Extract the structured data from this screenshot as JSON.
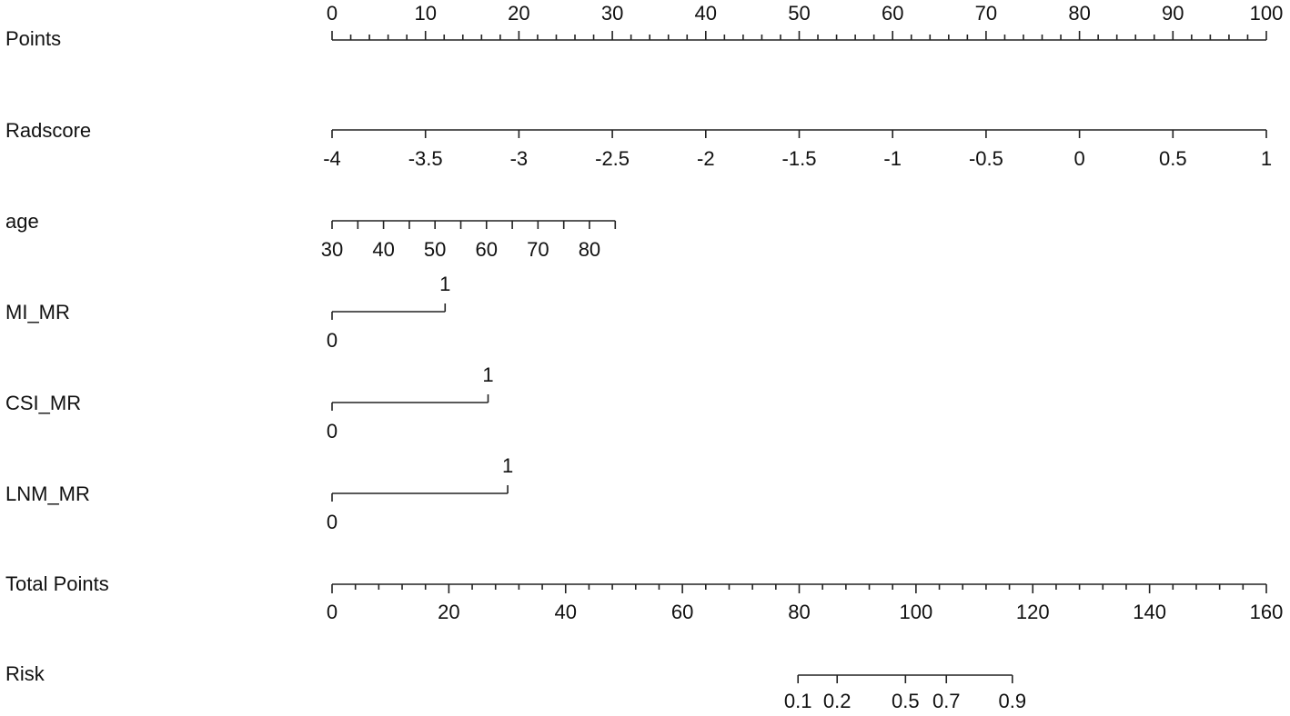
{
  "chart_data": {
    "type": "nomogram",
    "points_axis": {
      "label": "Points",
      "xlim": [
        0,
        100
      ],
      "xticks": [
        0,
        10,
        20,
        30,
        40,
        50,
        60,
        70,
        80,
        90,
        100
      ],
      "minor_xticks": [
        2,
        4,
        6,
        8,
        12,
        14,
        16,
        18,
        22,
        24,
        26,
        28,
        32,
        34,
        36,
        38,
        42,
        44,
        46,
        48,
        52,
        54,
        56,
        58,
        62,
        64,
        66,
        68,
        72,
        74,
        76,
        78,
        82,
        84,
        86,
        88,
        92,
        94,
        96,
        98
      ]
    },
    "variables": [
      {
        "label": "Radscore",
        "ticks": [
          -4,
          -3.5,
          -3,
          -2.5,
          -2,
          -1.5,
          -1,
          -0.5,
          0,
          0.5,
          1
        ],
        "points": [
          0,
          10,
          20,
          30,
          40,
          50,
          60,
          70,
          80,
          90,
          100
        ]
      },
      {
        "label": "age",
        "ticks": [
          30,
          40,
          50,
          60,
          70,
          80
        ],
        "points": [
          0,
          5.51,
          11.02,
          16.53,
          22.04,
          27.55
        ],
        "minor_ticks": [
          35,
          45,
          55,
          65,
          75,
          85
        ],
        "minor_points": [
          2.76,
          8.27,
          13.78,
          19.29,
          24.8,
          30.31
        ]
      },
      {
        "label": "MI_MR",
        "ticks": [
          0,
          1
        ],
        "points": [
          0,
          12.1
        ]
      },
      {
        "label": "CSI_MR",
        "ticks": [
          0,
          1
        ],
        "points": [
          0,
          16.7
        ]
      },
      {
        "label": "LNM_MR",
        "ticks": [
          0,
          1
        ],
        "points": [
          0,
          18.8
        ]
      }
    ],
    "total_axis": {
      "label": "Total Points",
      "xlim": [
        0,
        160
      ],
      "xticks": [
        0,
        20,
        40,
        60,
        80,
        100,
        120,
        140,
        160
      ],
      "minor_xticks": [
        4,
        8,
        12,
        16,
        24,
        28,
        32,
        36,
        44,
        48,
        52,
        56,
        64,
        68,
        72,
        76,
        84,
        88,
        92,
        96,
        104,
        108,
        112,
        116,
        124,
        128,
        132,
        136,
        144,
        148,
        152,
        156
      ]
    },
    "risk": {
      "label": "Risk",
      "ticks": [
        0.1,
        0.2,
        0.5,
        0.7,
        0.9
      ],
      "total_points": [
        79.8,
        86.5,
        98.2,
        105.2,
        116.5
      ]
    }
  }
}
